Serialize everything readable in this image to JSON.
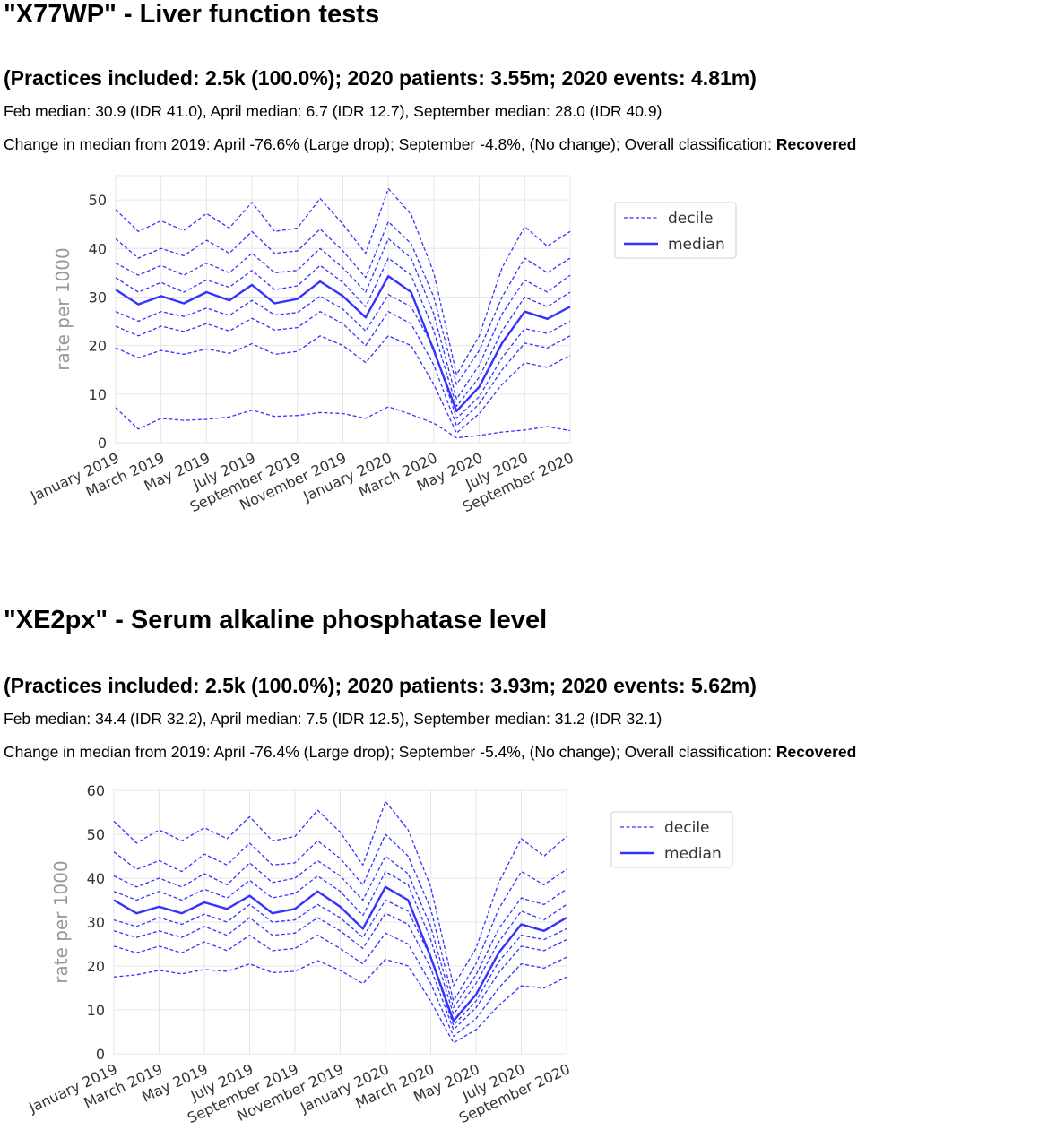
{
  "panels": [
    {
      "title": "\"X77WP\" - Liver function tests",
      "stats": "(Practices included: 2.5k (100.0%); 2020 patients: 3.55m; 2020 events: 4.81m)",
      "medians": "Feb median: 30.9 (IDR 41.0), April median: 6.7 (IDR 12.7), September median: 28.0 (IDR 40.9)",
      "change_prefix": "Change in median from 2019: April -76.6% (Large drop); September -4.8%, (No change); Overall classification: ",
      "classification": "Recovered"
    },
    {
      "title": "\"XE2px\" - Serum alkaline phosphatase level",
      "stats": "(Practices included: 2.5k (100.0%); 2020 patients: 3.93m; 2020 events: 5.62m)",
      "medians": "Feb median: 34.4 (IDR 32.2), April median: 7.5 (IDR 12.5), September median: 31.2 (IDR 32.1)",
      "change_prefix": "Change in median from 2019: April -76.4% (Large drop); September -5.4%, (No change); Overall classification: ",
      "classification": "Recovered"
    }
  ],
  "colors": {
    "series": "#3333ff",
    "axis_label": "#999999",
    "grid": "#e6e6e6",
    "tick_label": "#333333"
  },
  "chart_data": [
    {
      "type": "line",
      "title": "",
      "xlabel": "",
      "ylabel": "rate per 1000",
      "x": [
        "January 2019",
        "February 2019",
        "March 2019",
        "April 2019",
        "May 2019",
        "June 2019",
        "July 2019",
        "August 2019",
        "September 2019",
        "October 2019",
        "November 2019",
        "December 2019",
        "January 2020",
        "February 2020",
        "March 2020",
        "April 2020",
        "May 2020",
        "June 2020",
        "July 2020",
        "August 2020",
        "September 2020"
      ],
      "xtick_labels": [
        "January 2019",
        "March 2019",
        "May 2019",
        "July 2019",
        "September 2019",
        "November 2019",
        "January 2020",
        "March 2020",
        "May 2020",
        "July 2020",
        "September 2020"
      ],
      "ylim": [
        0,
        55
      ],
      "yticks": [
        0,
        10,
        20,
        30,
        40,
        50
      ],
      "grid": true,
      "legend": "top-right outside",
      "legend_entries": [
        "decile",
        "median"
      ],
      "series": [
        {
          "role": "decile",
          "values": [
            7.2,
            2.8,
            5.0,
            4.6,
            4.8,
            5.3,
            6.7,
            5.4,
            5.6,
            6.2,
            6.0,
            5.0,
            7.4,
            5.8,
            4.0,
            1.0,
            1.5,
            2.2,
            2.6,
            3.3,
            2.5
          ]
        },
        {
          "role": "decile",
          "values": [
            19.5,
            17.5,
            19.0,
            18.2,
            19.3,
            18.4,
            20.4,
            18.2,
            18.8,
            22.0,
            20.0,
            16.5,
            22.0,
            20.0,
            12.0,
            2.0,
            6.0,
            12.0,
            16.5,
            15.5,
            18.0
          ]
        },
        {
          "role": "decile",
          "values": [
            24.0,
            22.0,
            24.0,
            22.9,
            24.5,
            23.0,
            25.6,
            23.2,
            23.7,
            27.0,
            24.5,
            20.0,
            27.0,
            24.5,
            16.0,
            3.5,
            8.0,
            15.0,
            20.5,
            19.5,
            22.0
          ]
        },
        {
          "role": "decile",
          "values": [
            27.0,
            25.0,
            27.0,
            26.0,
            27.7,
            26.2,
            29.3,
            26.3,
            26.8,
            30.2,
            27.5,
            23.0,
            30.5,
            28.0,
            19.5,
            5.0,
            9.5,
            17.5,
            23.5,
            22.5,
            25.0
          ]
        },
        {
          "role": "median",
          "values": [
            31.5,
            28.5,
            30.2,
            28.7,
            31.0,
            29.3,
            32.5,
            28.7,
            29.6,
            33.2,
            30.2,
            25.8,
            34.3,
            31.0,
            19.0,
            6.5,
            11.5,
            20.5,
            27.0,
            25.5,
            28.0
          ]
        },
        {
          "role": "decile",
          "values": [
            34.0,
            31.0,
            33.0,
            31.0,
            33.5,
            32.0,
            35.5,
            31.5,
            32.3,
            36.5,
            33.0,
            28.0,
            38.0,
            34.5,
            23.0,
            7.5,
            13.5,
            23.0,
            30.0,
            28.0,
            31.0
          ]
        },
        {
          "role": "decile",
          "values": [
            37.0,
            34.5,
            36.5,
            34.5,
            37.0,
            35.0,
            39.0,
            35.0,
            35.5,
            40.0,
            36.0,
            31.0,
            42.0,
            38.0,
            26.5,
            9.0,
            16.0,
            26.5,
            33.5,
            31.0,
            34.5
          ]
        },
        {
          "role": "decile",
          "values": [
            42.0,
            38.0,
            40.0,
            38.5,
            41.7,
            39.0,
            43.5,
            39.0,
            39.5,
            44.0,
            39.5,
            34.0,
            45.5,
            41.0,
            30.0,
            12.0,
            19.0,
            30.0,
            38.0,
            35.0,
            38.0
          ]
        },
        {
          "role": "decile",
          "values": [
            48.0,
            43.5,
            45.7,
            43.7,
            47.2,
            44.2,
            49.5,
            43.5,
            44.2,
            50.3,
            45.0,
            39.0,
            52.3,
            47.0,
            35.0,
            14.0,
            22.0,
            36.0,
            44.5,
            40.5,
            43.5
          ]
        }
      ]
    },
    {
      "type": "line",
      "title": "",
      "xlabel": "",
      "ylabel": "rate per 1000",
      "x": [
        "January 2019",
        "February 2019",
        "March 2019",
        "April 2019",
        "May 2019",
        "June 2019",
        "July 2019",
        "August 2019",
        "September 2019",
        "October 2019",
        "November 2019",
        "December 2019",
        "January 2020",
        "February 2020",
        "March 2020",
        "April 2020",
        "May 2020",
        "June 2020",
        "July 2020",
        "August 2020",
        "September 2020"
      ],
      "xtick_labels": [
        "January 2019",
        "March 2019",
        "May 2019",
        "July 2019",
        "September 2019",
        "November 2019",
        "January 2020",
        "March 2020",
        "May 2020",
        "July 2020",
        "September 2020"
      ],
      "ylim": [
        0,
        60
      ],
      "yticks": [
        0,
        10,
        20,
        30,
        40,
        50,
        60
      ],
      "grid": true,
      "legend": "top-right outside",
      "legend_entries": [
        "decile",
        "median"
      ],
      "series": [
        {
          "role": "decile",
          "values": [
            17.5,
            18.0,
            19.0,
            18.2,
            19.2,
            18.8,
            20.5,
            18.5,
            18.8,
            21.2,
            19.0,
            16.0,
            21.5,
            20.0,
            12.0,
            2.5,
            5.5,
            11.0,
            15.5,
            15.0,
            17.5
          ]
        },
        {
          "role": "decile",
          "values": [
            24.5,
            23.0,
            24.5,
            23.0,
            25.5,
            23.5,
            27.0,
            23.5,
            24.0,
            27.0,
            24.0,
            20.5,
            27.5,
            25.0,
            16.0,
            4.0,
            8.0,
            15.0,
            20.5,
            19.5,
            22.0
          ]
        },
        {
          "role": "decile",
          "values": [
            28.0,
            26.5,
            28.0,
            26.5,
            29.0,
            27.0,
            31.0,
            27.0,
            27.5,
            31.0,
            28.0,
            24.0,
            32.0,
            29.5,
            19.5,
            5.5,
            10.5,
            18.5,
            24.5,
            23.5,
            26.0
          ]
        },
        {
          "role": "decile",
          "values": [
            30.5,
            29.0,
            31.0,
            29.5,
            31.8,
            30.0,
            34.0,
            30.0,
            30.5,
            34.0,
            31.0,
            26.5,
            35.0,
            32.5,
            22.0,
            6.5,
            12.0,
            21.0,
            27.0,
            26.0,
            28.5
          ]
        },
        {
          "role": "median",
          "values": [
            35.0,
            32.0,
            33.5,
            32.0,
            34.5,
            33.0,
            36.0,
            32.0,
            33.0,
            37.0,
            33.5,
            28.5,
            38.0,
            35.0,
            22.0,
            7.5,
            13.5,
            23.0,
            29.5,
            28.0,
            31.0
          ]
        },
        {
          "role": "decile",
          "values": [
            37.0,
            35.0,
            37.0,
            35.0,
            37.5,
            35.5,
            39.5,
            35.5,
            36.5,
            40.5,
            37.0,
            31.5,
            41.5,
            38.5,
            26.0,
            9.0,
            16.0,
            25.5,
            32.5,
            30.5,
            34.0
          ]
        },
        {
          "role": "decile",
          "values": [
            40.5,
            38.0,
            40.0,
            38.0,
            41.0,
            38.5,
            43.5,
            39.0,
            40.0,
            44.0,
            40.5,
            35.0,
            45.0,
            41.0,
            29.0,
            10.5,
            18.0,
            28.5,
            35.5,
            34.0,
            37.5
          ]
        },
        {
          "role": "decile",
          "values": [
            46.0,
            42.0,
            44.0,
            41.5,
            45.5,
            43.0,
            48.0,
            43.0,
            43.5,
            48.5,
            44.5,
            38.5,
            50.0,
            45.0,
            33.0,
            12.0,
            20.5,
            33.0,
            41.5,
            38.5,
            42.0
          ]
        },
        {
          "role": "decile",
          "values": [
            53.0,
            48.0,
            51.0,
            48.5,
            51.5,
            49.0,
            54.0,
            48.5,
            49.5,
            55.5,
            50.5,
            43.0,
            57.5,
            51.0,
            38.0,
            15.5,
            24.0,
            39.0,
            49.0,
            45.0,
            49.5
          ]
        }
      ]
    }
  ]
}
